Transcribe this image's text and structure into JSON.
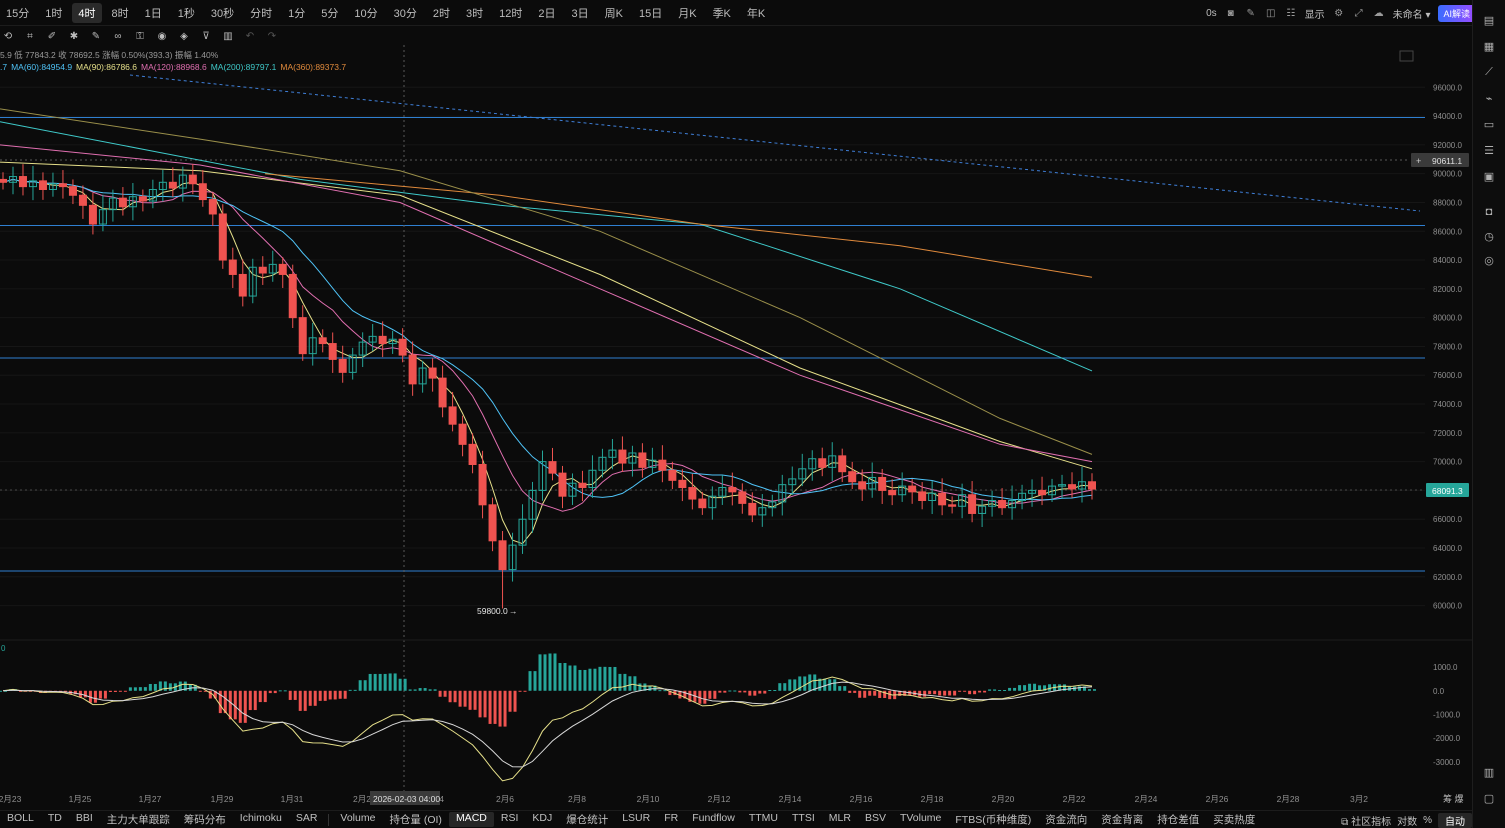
{
  "timeframes": [
    {
      "label": "15分",
      "active": false
    },
    {
      "label": "1时",
      "active": false
    },
    {
      "label": "4时",
      "active": true
    },
    {
      "label": "8时",
      "active": false
    },
    {
      "label": "1日",
      "active": false
    },
    {
      "label": "1秒",
      "active": false
    },
    {
      "label": "30秒",
      "active": false
    },
    {
      "label": "分时",
      "active": false
    },
    {
      "label": "1分",
      "active": false
    },
    {
      "label": "5分",
      "active": false
    },
    {
      "label": "10分",
      "active": false
    },
    {
      "label": "30分",
      "active": false
    },
    {
      "label": "2时",
      "active": false
    },
    {
      "label": "3时",
      "active": false
    },
    {
      "label": "12时",
      "active": false
    },
    {
      "label": "2日",
      "active": false
    },
    {
      "label": "3日",
      "active": false
    },
    {
      "label": "周K",
      "active": false
    },
    {
      "label": "15日",
      "active": false
    },
    {
      "label": "月K",
      "active": false
    },
    {
      "label": "季K",
      "active": false
    },
    {
      "label": "年K",
      "active": false
    }
  ],
  "topright": {
    "timer": "0s",
    "display_label": "显示",
    "layout_name": "未命名",
    "ai_label": "AI解读"
  },
  "legend": {
    "ohlc": "5.9  低 77843.2  收 78692.5  涨幅 0.50%(393.3)  振幅 1.40%",
    "ma": [
      {
        "text": ".7",
        "color": "#4fc3f7"
      },
      {
        "text": "MA(60):84954.9",
        "color": "#4fc3f7"
      },
      {
        "text": "MA(90):86786.6",
        "color": "#e6e08a"
      },
      {
        "text": "MA(120):88968.6",
        "color": "#e06fb0"
      },
      {
        "text": "MA(200):89797.1",
        "color": "#3fc9c9"
      },
      {
        "text": "MA(360):89373.7",
        "color": "#e08a3c"
      }
    ]
  },
  "price_axis": [
    "96000.0",
    "94000.0",
    "92000.0",
    "90000.0",
    "88000.0",
    "86000.0",
    "84000.0",
    "82000.0",
    "80000.0",
    "78000.0",
    "76000.0",
    "74000.0",
    "72000.0",
    "70000.0",
    "68000.0",
    "66000.0",
    "64000.0",
    "62000.0",
    "60000.0"
  ],
  "price_badges": {
    "crosshair": "90611.1",
    "last": "68091.3"
  },
  "low_annotation": "59800.0",
  "macd_axis": [
    "1000.0",
    "0.0",
    "-1000.0",
    "-2000.0",
    "-3000.0"
  ],
  "macd_zero_label": "0",
  "date_axis": [
    "2月23",
    "1月25",
    "1月27",
    "1月29",
    "1月31",
    "2月2",
    "2月4",
    "2月6",
    "2月8",
    "2月10",
    "2月12",
    "2月14",
    "2月16",
    "2月18",
    "2月20",
    "2月22",
    "2月24",
    "2月26",
    "2月28",
    "3月2"
  ],
  "crosshair_date": "2026-02-03 04:00",
  "axis_corner": "筹 爆",
  "indicators_main": [
    "BOLL",
    "TD",
    "BBI",
    "主力大单跟踪",
    "筹码分布",
    "Ichimoku",
    "SAR"
  ],
  "indicators_sub": [
    {
      "label": "Volume",
      "active": false
    },
    {
      "label": "持仓量 (OI)",
      "active": false
    },
    {
      "label": "MACD",
      "active": true
    },
    {
      "label": "RSI",
      "active": false
    },
    {
      "label": "KDJ",
      "active": false
    },
    {
      "label": "爆仓统计",
      "active": false
    },
    {
      "label": "LSUR",
      "active": false
    },
    {
      "label": "FR",
      "active": false
    },
    {
      "label": "Fundflow",
      "active": false
    },
    {
      "label": "TTMU",
      "active": false
    },
    {
      "label": "TTSI",
      "active": false
    },
    {
      "label": "MLR",
      "active": false
    },
    {
      "label": "BSV",
      "active": false
    },
    {
      "label": "TVolume",
      "active": false
    },
    {
      "label": "FTBS(币种维度)",
      "active": false
    },
    {
      "label": "资金流向",
      "active": false
    },
    {
      "label": "资金背离",
      "active": false
    },
    {
      "label": "持仓差值",
      "active": false
    },
    {
      "label": "买卖热度",
      "active": false
    }
  ],
  "bottomright": {
    "community": "社区指标",
    "log": "对数",
    "pct": "%",
    "auto": "自动"
  },
  "colors": {
    "up": "#26a69a",
    "down": "#ef5350",
    "hline": "#2f7fd0",
    "grid": "#1a1a1a"
  },
  "chart_data": {
    "type": "candlestick",
    "price_range": [
      59000,
      97200
    ],
    "hlines": [
      93900,
      86400,
      77200,
      62400
    ],
    "last_price": 68091.3,
    "low_price": 59800.0,
    "dates": [
      "2026-01-22",
      "2026-02-22"
    ],
    "candles_approx": [
      [
        89600,
        89400
      ],
      [
        89400,
        89800
      ],
      [
        89800,
        89100
      ],
      [
        89100,
        89500
      ],
      [
        89500,
        88900
      ],
      [
        88900,
        89300
      ],
      [
        89300,
        89100
      ],
      [
        89100,
        88500
      ],
      [
        88500,
        87800
      ],
      [
        87800,
        86500
      ],
      [
        86500,
        87500
      ],
      [
        87500,
        88300
      ],
      [
        88300,
        87700
      ],
      [
        87700,
        88400
      ],
      [
        88400,
        88100
      ],
      [
        88100,
        88900
      ],
      [
        88900,
        89400
      ],
      [
        89400,
        89000
      ],
      [
        89000,
        89900
      ],
      [
        89900,
        89300
      ],
      [
        89300,
        88200
      ],
      [
        88200,
        87200
      ],
      [
        87200,
        84000
      ],
      [
        84000,
        83000
      ],
      [
        83000,
        81500
      ],
      [
        81500,
        83500
      ],
      [
        83500,
        83100
      ],
      [
        83100,
        83700
      ],
      [
        83700,
        83000
      ],
      [
        83000,
        80000
      ],
      [
        80000,
        77500
      ],
      [
        77500,
        78600
      ],
      [
        78600,
        78200
      ],
      [
        78200,
        77100
      ],
      [
        77100,
        76200
      ],
      [
        76200,
        77400
      ],
      [
        77400,
        78300
      ],
      [
        78300,
        78700
      ],
      [
        78700,
        78200
      ],
      [
        78200,
        78500
      ],
      [
        78500,
        77400
      ],
      [
        77400,
        75400
      ],
      [
        75400,
        76500
      ],
      [
        76500,
        75800
      ],
      [
        75800,
        73800
      ],
      [
        73800,
        72600
      ],
      [
        72600,
        71200
      ],
      [
        71200,
        69800
      ],
      [
        69800,
        67000
      ],
      [
        67000,
        64500
      ],
      [
        64500,
        62500
      ],
      [
        62500,
        64200
      ],
      [
        64200,
        66000
      ],
      [
        66000,
        68000
      ],
      [
        68000,
        70000
      ],
      [
        70000,
        69200
      ],
      [
        69200,
        67600
      ],
      [
        67600,
        68500
      ],
      [
        68500,
        68200
      ],
      [
        68200,
        69400
      ],
      [
        69400,
        70300
      ],
      [
        70300,
        70800
      ],
      [
        70800,
        69900
      ],
      [
        69900,
        70600
      ],
      [
        70600,
        69600
      ],
      [
        69600,
        70100
      ],
      [
        70100,
        69400
      ],
      [
        69400,
        68700
      ],
      [
        68700,
        68200
      ],
      [
        68200,
        67400
      ],
      [
        67400,
        66800
      ],
      [
        66800,
        67600
      ],
      [
        67600,
        68200
      ],
      [
        68200,
        67900
      ],
      [
        67900,
        67100
      ],
      [
        67100,
        66300
      ],
      [
        66300,
        66800
      ],
      [
        66800,
        67200
      ],
      [
        67200,
        68400
      ],
      [
        68400,
        68800
      ],
      [
        68800,
        69500
      ],
      [
        69500,
        70200
      ],
      [
        70200,
        69600
      ],
      [
        69600,
        70400
      ],
      [
        70400,
        69300
      ],
      [
        69300,
        68600
      ],
      [
        68600,
        68100
      ],
      [
        68100,
        68900
      ],
      [
        68900,
        68000
      ],
      [
        68000,
        67700
      ],
      [
        67700,
        68300
      ],
      [
        68300,
        67900
      ],
      [
        67900,
        67300
      ],
      [
        67300,
        67800
      ],
      [
        67800,
        67000
      ],
      [
        67000,
        66900
      ],
      [
        66900,
        67700
      ],
      [
        67700,
        66400
      ],
      [
        66400,
        66900
      ],
      [
        66900,
        67300
      ],
      [
        67300,
        66800
      ],
      [
        66800,
        67300
      ],
      [
        67300,
        67800
      ],
      [
        67800,
        68000
      ],
      [
        68000,
        67700
      ],
      [
        67700,
        68300
      ],
      [
        68300,
        68400
      ],
      [
        68400,
        68100
      ],
      [
        68100,
        68600
      ],
      [
        68600,
        68091
      ]
    ],
    "macd_range": [
      -3600,
      1300
    ]
  }
}
